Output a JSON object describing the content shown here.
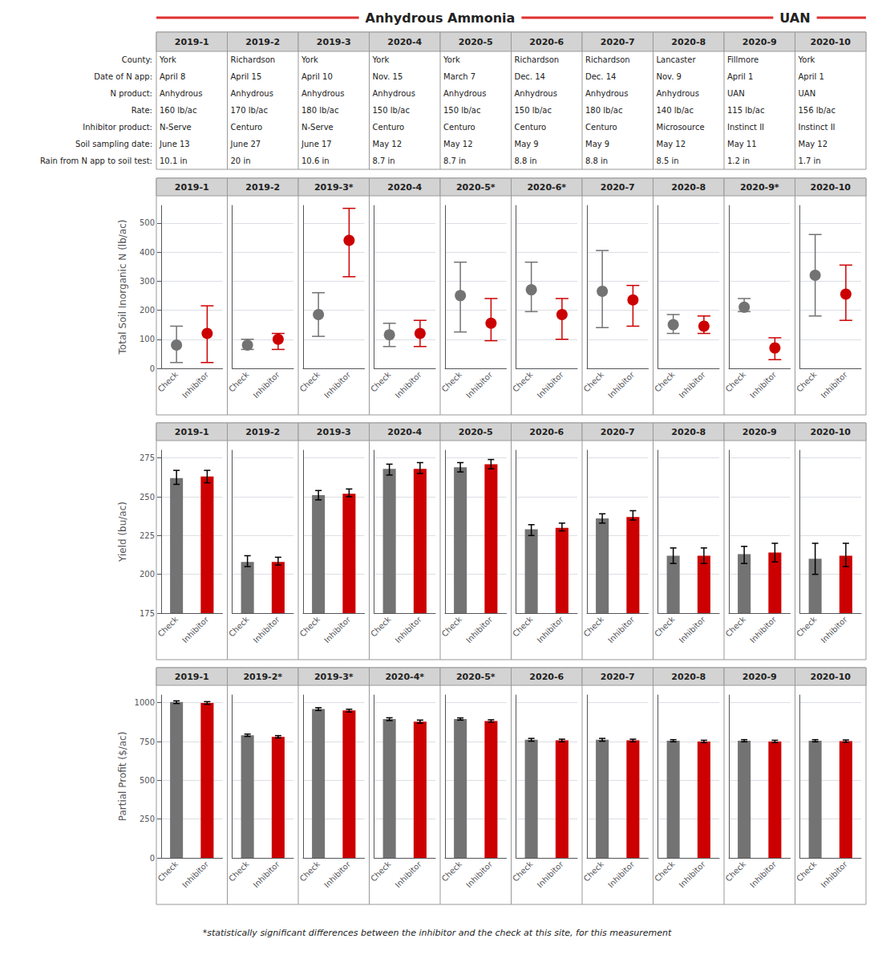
{
  "chart_data": [
    {
      "type": "scatter",
      "ylabel": "Total Soil Inorganic N (lb/ac)",
      "categories": [
        "Check",
        "Inhibitor"
      ],
      "colors": [
        "#737373",
        "#CC0000"
      ],
      "ylim": [
        0,
        560
      ],
      "yticks": [
        0,
        100,
        200,
        300,
        400,
        500
      ],
      "grid": true,
      "facets": [
        {
          "title": "2019-1",
          "values": [
            80,
            120
          ],
          "low": [
            20,
            20
          ],
          "high": [
            145,
            215
          ]
        },
        {
          "title": "2019-2",
          "values": [
            80,
            100
          ],
          "low": [
            65,
            65
          ],
          "high": [
            100,
            120
          ]
        },
        {
          "title": "2019-3*",
          "values": [
            185,
            440
          ],
          "low": [
            110,
            315
          ],
          "high": [
            260,
            550
          ]
        },
        {
          "title": "2020-4",
          "values": [
            115,
            120
          ],
          "low": [
            75,
            75
          ],
          "high": [
            155,
            165
          ]
        },
        {
          "title": "2020-5*",
          "values": [
            250,
            155
          ],
          "low": [
            125,
            95
          ],
          "high": [
            365,
            240
          ]
        },
        {
          "title": "2020-6*",
          "values": [
            270,
            185
          ],
          "low": [
            195,
            100
          ],
          "high": [
            365,
            240
          ]
        },
        {
          "title": "2020-7",
          "values": [
            265,
            235
          ],
          "low": [
            140,
            145
          ],
          "high": [
            405,
            285
          ]
        },
        {
          "title": "2020-8",
          "values": [
            150,
            145
          ],
          "low": [
            120,
            120
          ],
          "high": [
            185,
            180
          ]
        },
        {
          "title": "2020-9*",
          "values": [
            210,
            70
          ],
          "low": [
            195,
            30
          ],
          "high": [
            240,
            105
          ]
        },
        {
          "title": "2020-10",
          "values": [
            320,
            255
          ],
          "low": [
            180,
            165
          ],
          "high": [
            460,
            355
          ]
        }
      ]
    },
    {
      "type": "bar",
      "ylabel": "Yield (bu/ac)",
      "categories": [
        "Check",
        "Inhibitor"
      ],
      "colors": [
        "#737373",
        "#CC0000"
      ],
      "ylim": [
        175,
        280
      ],
      "yticks": [
        175,
        200,
        225,
        250,
        275
      ],
      "grid": true,
      "facets": [
        {
          "title": "2019-1",
          "values": [
            262,
            263
          ],
          "low": [
            258,
            259
          ],
          "high": [
            267,
            267
          ]
        },
        {
          "title": "2019-2",
          "values": [
            208,
            208
          ],
          "low": [
            205,
            206
          ],
          "high": [
            212,
            211
          ]
        },
        {
          "title": "2019-3",
          "values": [
            251,
            252
          ],
          "low": [
            248,
            250
          ],
          "high": [
            254,
            255
          ]
        },
        {
          "title": "2020-4",
          "values": [
            268,
            268
          ],
          "low": [
            264,
            265
          ],
          "high": [
            271,
            272
          ]
        },
        {
          "title": "2020-5",
          "values": [
            269,
            271
          ],
          "low": [
            266,
            268
          ],
          "high": [
            272,
            274
          ]
        },
        {
          "title": "2020-6",
          "values": [
            229,
            230
          ],
          "low": [
            225,
            228
          ],
          "high": [
            232,
            233
          ]
        },
        {
          "title": "2020-7",
          "values": [
            236,
            237
          ],
          "low": [
            233,
            235
          ],
          "high": [
            239,
            241
          ]
        },
        {
          "title": "2020-8",
          "values": [
            212,
            212
          ],
          "low": [
            207,
            207
          ],
          "high": [
            217,
            217
          ]
        },
        {
          "title": "2020-9",
          "values": [
            213,
            214
          ],
          "low": [
            207,
            208
          ],
          "high": [
            218,
            220
          ]
        },
        {
          "title": "2020-10",
          "values": [
            210,
            212
          ],
          "low": [
            200,
            205
          ],
          "high": [
            220,
            220
          ]
        }
      ]
    },
    {
      "type": "bar",
      "ylabel": "Partial Profit ($/ac)",
      "categories": [
        "Check",
        "Inhibitor"
      ],
      "colors": [
        "#737373",
        "#CC0000"
      ],
      "ylim": [
        0,
        1050
      ],
      "yticks": [
        0,
        250,
        500,
        750,
        1000
      ],
      "grid": true,
      "facets": [
        {
          "title": "2019-1",
          "values": [
            1005,
            998
          ],
          "low": [
            995,
            990
          ],
          "high": [
            1012,
            1007
          ]
        },
        {
          "title": "2019-2*",
          "values": [
            790,
            780
          ],
          "low": [
            783,
            773
          ],
          "high": [
            798,
            788
          ]
        },
        {
          "title": "2019-3*",
          "values": [
            960,
            950
          ],
          "low": [
            950,
            940
          ],
          "high": [
            968,
            958
          ]
        },
        {
          "title": "2020-4*",
          "values": [
            895,
            878
          ],
          "low": [
            885,
            868
          ],
          "high": [
            903,
            888
          ]
        },
        {
          "title": "2020-5*",
          "values": [
            895,
            882
          ],
          "low": [
            888,
            875
          ],
          "high": [
            902,
            890
          ]
        },
        {
          "title": "2020-6",
          "values": [
            762,
            758
          ],
          "low": [
            752,
            748
          ],
          "high": [
            770,
            765
          ]
        },
        {
          "title": "2020-7",
          "values": [
            762,
            758
          ],
          "low": [
            752,
            748
          ],
          "high": [
            770,
            765
          ]
        },
        {
          "title": "2020-8",
          "values": [
            755,
            750
          ],
          "low": [
            748,
            743
          ],
          "high": [
            762,
            758
          ]
        },
        {
          "title": "2020-9",
          "values": [
            755,
            750
          ],
          "low": [
            748,
            743
          ],
          "high": [
            762,
            758
          ]
        },
        {
          "title": "2020-10",
          "values": [
            755,
            752
          ],
          "low": [
            748,
            745
          ],
          "high": [
            762,
            760
          ]
        }
      ]
    }
  ],
  "column_groups": [
    {
      "title": "Anhydrous Ammonia",
      "columns": [
        "2019-1",
        "2019-2",
        "2019-3",
        "2020-4",
        "2020-5",
        "2020-6",
        "2020-7",
        "2020-8"
      ]
    },
    {
      "title": "UAN",
      "columns": [
        "2020-9",
        "2020-10"
      ]
    }
  ],
  "table": {
    "columns": [
      "2019-1",
      "2019-2",
      "2019-3",
      "2020-4",
      "2020-5",
      "2020-6",
      "2020-7",
      "2020-8",
      "2020-9",
      "2020-10"
    ],
    "row_labels": [
      "County:",
      "Date of N app:",
      "N product:",
      "Rate:",
      "Inhibitor product:",
      "Soil sampling date:",
      "Rain from N app to soil test:"
    ],
    "rows": [
      [
        "York",
        "Richardson",
        "York",
        "York",
        "York",
        "Richardson",
        "Richardson",
        "Lancaster",
        "Fillmore",
        "York"
      ],
      [
        "April 8",
        "April 15",
        "April 10",
        "Nov. 15",
        "March 7",
        "Dec. 14",
        "Dec. 14",
        "Nov. 9",
        "April 1",
        "April 1"
      ],
      [
        "Anhydrous",
        "Anhydrous",
        "Anhydrous",
        "Anhydrous",
        "Anhydrous",
        "Anhydrous",
        "Anhydrous",
        "Anhydrous",
        "UAN",
        "UAN"
      ],
      [
        "160 lb/ac",
        "170 lb/ac",
        "180 lb/ac",
        "150 lb/ac",
        "150 lb/ac",
        "150 lb/ac",
        "180 lb/ac",
        "140 lb/ac",
        "115 lb/ac",
        "156 lb/ac"
      ],
      [
        "N-Serve",
        "Centuro",
        "N-Serve",
        "Centuro",
        "Centuro",
        "Centuro",
        "Centuro",
        "Microsource",
        "Instinct II",
        "Instinct II"
      ],
      [
        "June 13",
        "June 27",
        "June 17",
        "May 12",
        "May 12",
        "May 9",
        "May 9",
        "May 12",
        "May 11",
        "May 12"
      ],
      [
        "10.1 in",
        "20 in",
        "10.6 in",
        "8.7 in",
        "8.7 in",
        "8.8 in",
        "8.8 in",
        "8.5 in",
        "1.2 in",
        "1.7 in"
      ]
    ]
  },
  "annotations": [
    "*statistically significant differences between the inhibitor and the check at this site, for this measurement"
  ]
}
